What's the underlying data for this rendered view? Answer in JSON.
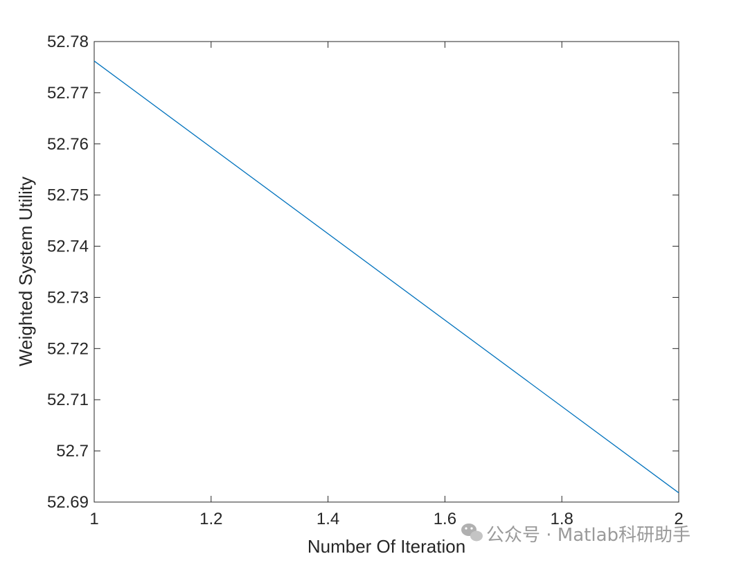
{
  "chart_data": {
    "type": "line",
    "xlabel": "Number Of Iteration",
    "ylabel": "Weighted System Utility",
    "xlim": [
      1,
      2
    ],
    "ylim": [
      52.69,
      52.78
    ],
    "x_ticks": [
      "1",
      "1.2",
      "1.4",
      "1.6",
      "1.8",
      "2"
    ],
    "y_ticks": [
      "52.69",
      "52.7",
      "52.71",
      "52.72",
      "52.73",
      "52.74",
      "52.75",
      "52.76",
      "52.77",
      "52.78"
    ],
    "grid": false,
    "series": [
      {
        "x": [
          1,
          2
        ],
        "y": [
          52.7762,
          52.6918
        ],
        "color": "#0072BD"
      }
    ]
  },
  "watermark": {
    "text": "公众号 · Matlab科研助手",
    "icon": "wechat-icon"
  }
}
